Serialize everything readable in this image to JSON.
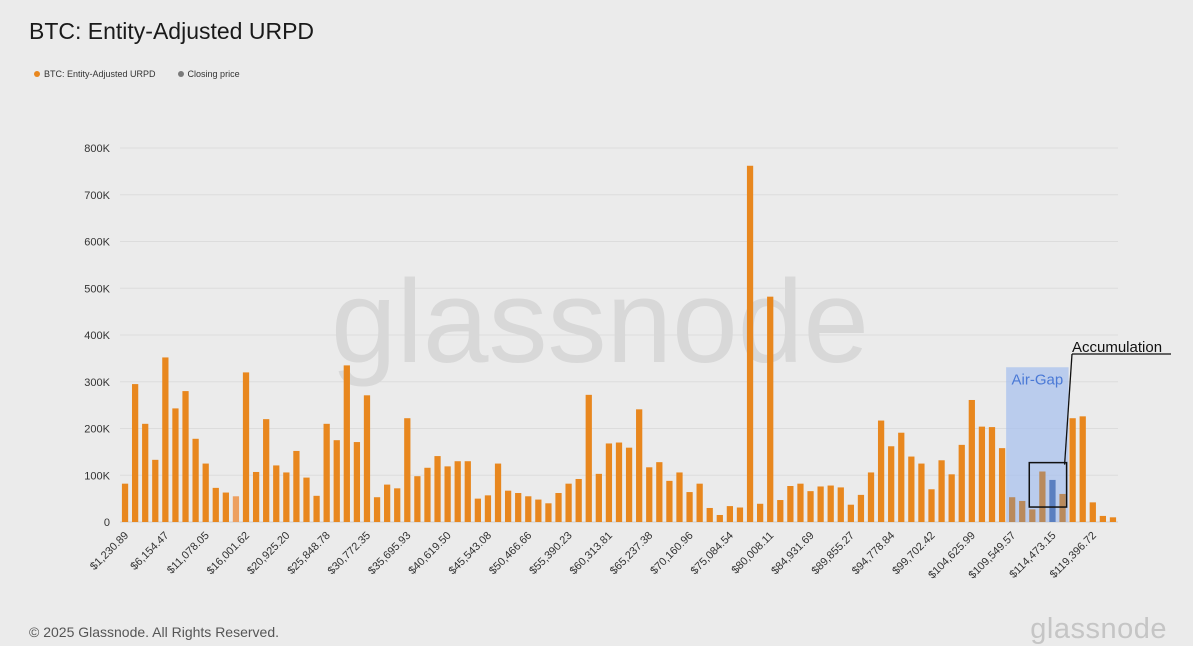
{
  "title": "BTC: Entity-Adjusted URPD",
  "legend": [
    {
      "label": "BTC: Entity-Adjusted URPD",
      "color": "#e8871e"
    },
    {
      "label": "Closing price",
      "color": "#7a7a7a"
    }
  ],
  "watermark": "glassnode",
  "footer": {
    "copyright": "© 2025 Glassnode. All Rights Reserved.",
    "logo": "glassnode"
  },
  "annotations": {
    "air_gap": "Air-Gap",
    "accumulation": "Accumulation"
  },
  "colors": {
    "bar": "#e8871e",
    "bar_light": "#eda060",
    "air_gap_fill": "#a9c2ee",
    "air_gap_text": "#4a79d6",
    "current_bar": "#5a7fc0"
  },
  "chart_data": {
    "type": "bar",
    "title": "BTC: Entity-Adjusted URPD",
    "ylim": [
      0,
      800000
    ],
    "yticks": [
      0,
      100000,
      200000,
      300000,
      400000,
      500000,
      600000,
      700000,
      800000
    ],
    "ytick_labels": [
      "0",
      "100K",
      "200K",
      "300K",
      "400K",
      "500K",
      "600K",
      "700K",
      "800K"
    ],
    "xtick_labels": [
      "$1,230.89",
      "$6,154.47",
      "$11,078.05",
      "$16,001.62",
      "$20,925.20",
      "$25,848.78",
      "$30,772.35",
      "$35,695.93",
      "$40,619.50",
      "$45,543.08",
      "$50,466.66",
      "$55,390.23",
      "$60,313.81",
      "$65,237.38",
      "$70,160.96",
      "$75,084.54",
      "$80,008.11",
      "$84,931.69",
      "$89,855.27",
      "$94,778.84",
      "$99,702.42",
      "$104,625.99",
      "$109,549.57",
      "$114,473.15",
      "$119,396.72"
    ],
    "grid": true,
    "legend_position": "top-left",
    "series": [
      {
        "name": "BTC: Entity-Adjusted URPD",
        "values": [
          82000,
          295000,
          210000,
          133000,
          352000,
          243000,
          280000,
          178000,
          125000,
          73000,
          63000,
          55000,
          320000,
          107000,
          220000,
          121000,
          106000,
          152000,
          95000,
          56000,
          210000,
          175000,
          335000,
          171000,
          271000,
          53000,
          80000,
          72000,
          222000,
          98000,
          116000,
          141000,
          119000,
          130000,
          130000,
          50000,
          57000,
          125000,
          67000,
          62000,
          55000,
          48000,
          40000,
          62000,
          82000,
          92000,
          272000,
          103000,
          168000,
          170000,
          159000,
          241000,
          117000,
          128000,
          88000,
          106000,
          64000,
          82000,
          30000,
          15000,
          34000,
          31000,
          762000,
          39000,
          482000,
          47000,
          77000,
          82000,
          66000,
          76000,
          78000,
          74000,
          37000,
          58000,
          106000,
          217000,
          162000,
          191000,
          140000,
          125000,
          70000,
          132000,
          102000,
          165000,
          261000,
          204000,
          203000,
          158000,
          53000,
          45000,
          27000,
          108000,
          90000,
          60000,
          222000,
          226000,
          42000,
          13000,
          10000
        ]
      }
    ],
    "closing_price_index": 92,
    "annotation_air_gap_range_index": [
      88,
      93
    ],
    "annotation_accumulation_range_index": [
      90,
      93
    ]
  }
}
